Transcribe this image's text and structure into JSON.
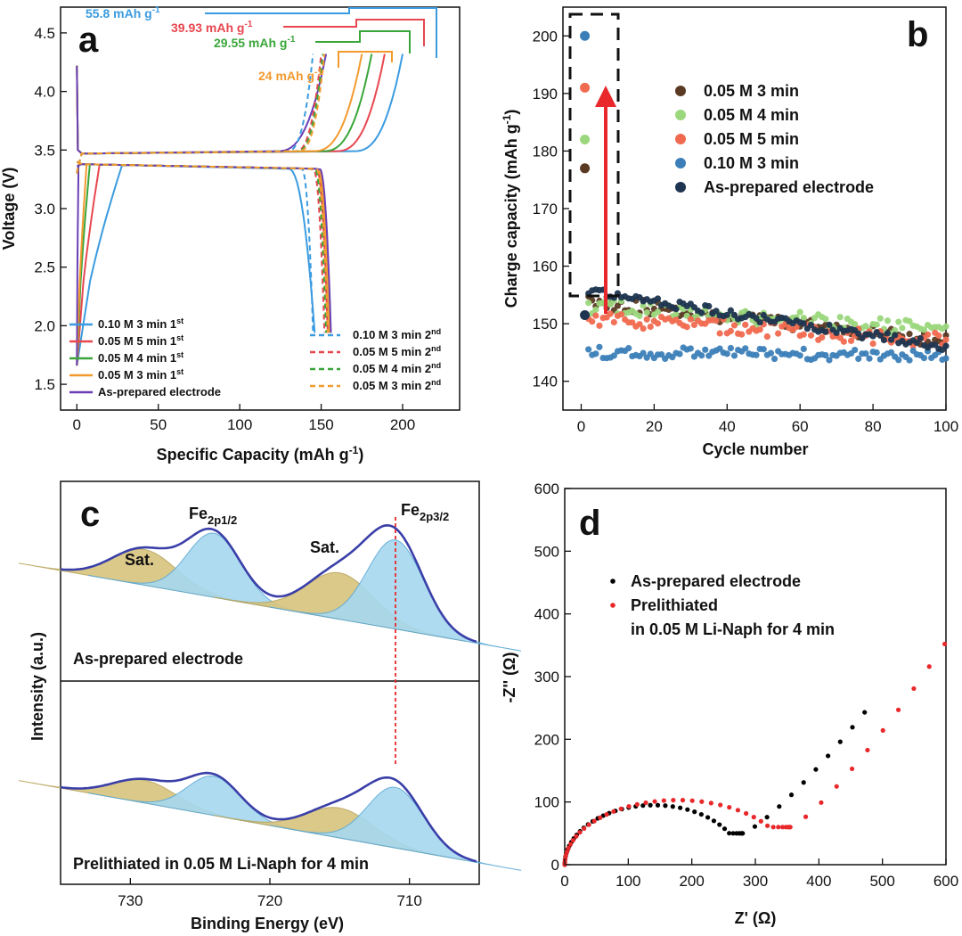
{
  "colors": {
    "blue": "#3b9be0",
    "red": "#e8474f",
    "green": "#3aa63a",
    "orange": "#f39a2f",
    "purple": "#6a3fb5",
    "c_brown": "#5b3a24",
    "c_lightgreen": "#9bd77c",
    "c_salmon": "#f06a4f",
    "c_steel": "#3c7fb8",
    "c_navy": "#1d3550",
    "xps_blue": "#a6d8ef",
    "xps_tan": "#d8c47e",
    "xps_env": "#3a3fa8"
  },
  "chart_data": [
    {
      "panel": "a",
      "type": "line",
      "xlabel": "Specific Capacity (mAh g",
      "xlabel_sup": "-1",
      "xlabel_end": ")",
      "ylabel": "Voltage (V)",
      "xlim": [
        -10,
        235
      ],
      "ylim": [
        1.28,
        4.72
      ],
      "xticks": [
        0,
        50,
        100,
        150,
        200
      ],
      "yticks": [
        1.5,
        2.0,
        2.5,
        3.0,
        3.5,
        4.0,
        4.5
      ],
      "ytick_labels": [
        "1.5",
        "2.0",
        "2.5",
        "3.0",
        "3.5",
        "4.0",
        "4.5"
      ],
      "series": [
        {
          "name": "0.10 M 3 min",
          "sup": "st",
          "suffix": "1",
          "color": "blue",
          "dash": false,
          "charge_end": 200,
          "discharge_end": 146
        },
        {
          "name": "0.05 M 5 min",
          "sup": "st",
          "suffix": "1",
          "color": "red",
          "dash": false,
          "charge_end": 189,
          "discharge_end": 154
        },
        {
          "name": "0.05 M 4 min",
          "sup": "st",
          "suffix": "1",
          "color": "green",
          "dash": false,
          "charge_end": 181,
          "discharge_end": 155
        },
        {
          "name": "0.05 M 3 min",
          "sup": "st",
          "suffix": "1",
          "color": "orange",
          "dash": false,
          "charge_end": 175,
          "discharge_end": 155
        },
        {
          "name": "As-prepared electrode",
          "sup": "",
          "suffix": "",
          "color": "purple",
          "dash": false,
          "charge_end": 153,
          "discharge_end": 156
        },
        {
          "name": "0.10 M 3 min",
          "sup": "nd",
          "suffix": "2",
          "color": "blue",
          "dash": true,
          "charge_end": 145,
          "discharge_end": 145
        },
        {
          "name": "0.05 M 5 min",
          "sup": "nd",
          "suffix": "2",
          "color": "red",
          "dash": true,
          "charge_end": 150,
          "discharge_end": 152
        },
        {
          "name": "0.05 M 4 min",
          "sup": "nd",
          "suffix": "2",
          "color": "green",
          "dash": true,
          "charge_end": 151,
          "discharge_end": 153
        },
        {
          "name": "0.05 M 3 min",
          "sup": "nd",
          "suffix": "2",
          "color": "orange",
          "dash": true,
          "charge_end": 152,
          "discharge_end": 154
        }
      ],
      "annotations": [
        {
          "text": "55.8 mAh g",
          "sup": "-1",
          "color": "blue"
        },
        {
          "text": "39.93 mAh g",
          "sup": "-1",
          "color": "red"
        },
        {
          "text": "29.55 mAh g",
          "sup": "-1",
          "color": "green"
        },
        {
          "text": "24 mAh g",
          "sup": "-1",
          "color": "orange"
        }
      ]
    },
    {
      "panel": "b",
      "type": "scatter",
      "xlabel": "Cycle number",
      "ylabel": "Charge capacity (mAh g",
      "ylabel_sup": "-1",
      "ylabel_end": ")",
      "xlim": [
        -5,
        100
      ],
      "ylim": [
        135,
        205
      ],
      "xticks": [
        0,
        20,
        40,
        60,
        80,
        100
      ],
      "yticks": [
        140,
        150,
        160,
        170,
        180,
        190,
        200
      ],
      "series": [
        {
          "name": "0.05 M 3 min",
          "color": "c_brown",
          "first": 177,
          "start": 154,
          "end": 147,
          "amp": 1.2
        },
        {
          "name": "0.05 M 4 min",
          "color": "c_lightgreen",
          "first": 182,
          "start": 153,
          "end": 149,
          "amp": 1.4
        },
        {
          "name": "0.05 M 5 min",
          "color": "c_salmon",
          "first": 191,
          "start": 151,
          "end": 147,
          "amp": 1.3
        },
        {
          "name": "0.10 M 3 min",
          "color": "c_steel",
          "first": 200,
          "start": 145,
          "end": 144.5,
          "amp": 1.0
        },
        {
          "name": "As-prepared electrode",
          "color": "c_navy",
          "first": 151.5,
          "start": 155.5,
          "end": 146,
          "amp": 0.8
        }
      ]
    },
    {
      "panel": "c",
      "type": "area",
      "xlabel": "Binding Energy (eV)",
      "ylabel": "Intensity (a.u.)",
      "xlim": [
        735,
        705
      ],
      "xticks": [
        730,
        720,
        710
      ],
      "peaks": [
        {
          "label": "Sat.",
          "center": 729,
          "type": "satellite"
        },
        {
          "label": "Fe",
          "sub": "2p1/2",
          "center": 724,
          "type": "main"
        },
        {
          "label": "Sat.",
          "center": 715,
          "type": "satellite"
        },
        {
          "label": "Fe",
          "sub": "2p3/2",
          "center": 711,
          "type": "main"
        }
      ],
      "reference_line": 711,
      "spectra": [
        {
          "name": "As-prepared electrode",
          "heights": [
            0.5,
            0.9,
            0.65,
            1.25
          ]
        },
        {
          "name": "Prelithiated in 0.05 M Li-Naph for 4 min",
          "heights": [
            0.32,
            0.55,
            0.42,
            0.85
          ]
        }
      ]
    },
    {
      "panel": "d",
      "type": "scatter",
      "xlabel": "Z' (Ω)",
      "ylabel": "-Z'' (Ω)",
      "xlim": [
        0,
        600
      ],
      "ylim": [
        0,
        600
      ],
      "xticks": [
        0,
        100,
        200,
        300,
        400,
        500,
        600
      ],
      "yticks": [
        0,
        100,
        200,
        300,
        400,
        500,
        600
      ],
      "series": [
        {
          "name": "As-prepared electrode",
          "color": "#000000",
          "r_ct": 280,
          "peak": 95,
          "min": 50,
          "tail_x": 472,
          "tail_y": 243
        },
        {
          "name": "Prelithiated",
          "name_line2": "in 0.05 M Li-Naph for 4 min",
          "color": "#e8282b",
          "r_ct": 355,
          "peak": 103,
          "min": 60,
          "tail_x": 598,
          "tail_y": 352
        }
      ]
    }
  ]
}
